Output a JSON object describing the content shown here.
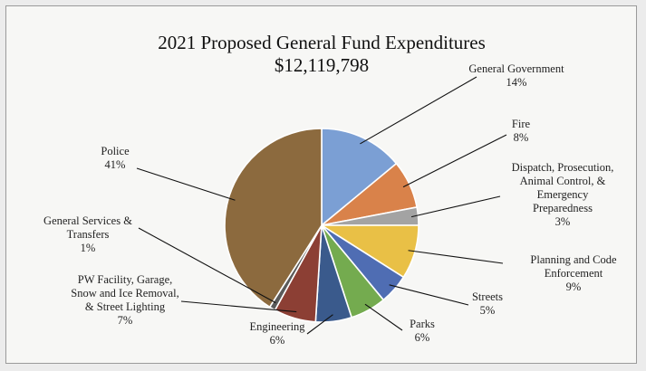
{
  "chart_data": {
    "type": "pie",
    "title": "2021 Proposed General Fund Expenditures",
    "subtitle": "$12,119,798",
    "slices": [
      {
        "label": "General Government",
        "display": [
          "General Government",
          "14%"
        ],
        "value": 14,
        "color": "#7b9fd4"
      },
      {
        "label": "Fire",
        "display": [
          "Fire",
          "8%"
        ],
        "value": 8,
        "color": "#d9824a"
      },
      {
        "label": "Dispatch, Prosecution, Animal Control, & Emergency Preparedness",
        "display": [
          "Dispatch, Prosecution,",
          "Animal Control, &",
          "Emergency",
          "Preparedness",
          "3%"
        ],
        "value": 3,
        "color": "#a3a3a3"
      },
      {
        "label": "Planning and Code Enforcement",
        "display": [
          "Planning and Code",
          "Enforcement",
          "9%"
        ],
        "value": 9,
        "color": "#e9c046"
      },
      {
        "label": "Streets",
        "display": [
          "Streets",
          "5%"
        ],
        "value": 5,
        "color": "#4f6db3"
      },
      {
        "label": "Parks",
        "display": [
          "Parks",
          "6%"
        ],
        "value": 6,
        "color": "#74ab4f"
      },
      {
        "label": "Engineering",
        "display": [
          "Engineering",
          "6%"
        ],
        "value": 6,
        "color": "#3a5a8c"
      },
      {
        "label": "PW Facility, Garage, Snow and Ice Removal, & Street Lighting",
        "display": [
          "PW Facility, Garage,",
          "Snow and Ice Removal,",
          "& Street Lighting",
          "7%"
        ],
        "value": 7,
        "color": "#8c3f34"
      },
      {
        "label": "General Services & Transfers",
        "display": [
          "General Services &",
          "Transfers",
          "1%"
        ],
        "value": 1,
        "color": "#5a5a5a"
      },
      {
        "label": "Police",
        "display": [
          "Police",
          "41%"
        ],
        "value": 41,
        "color": "#8c6a3e"
      }
    ]
  }
}
